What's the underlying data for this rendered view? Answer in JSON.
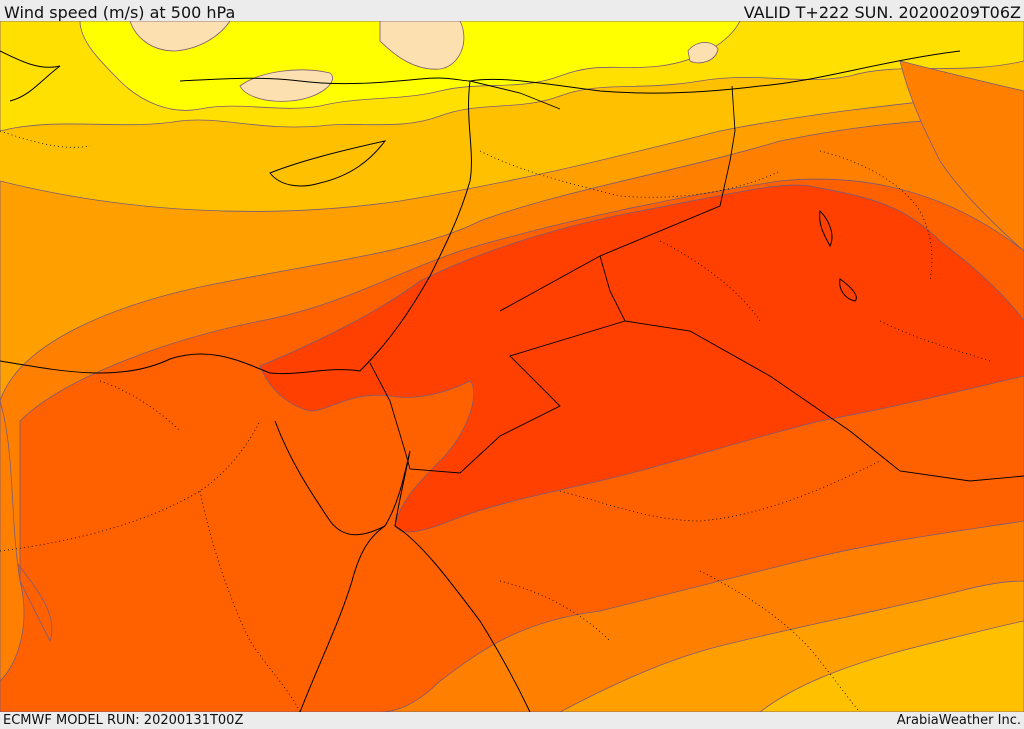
{
  "header": {
    "title": "Wind speed (m/s) at 500 hPa",
    "valid_time": "VALID T+222 SUN. 20200209T06Z"
  },
  "footer": {
    "model_run": "ECMWF MODEL RUN: 20200131T00Z",
    "credit": "ArabiaWeather Inc."
  },
  "colors": {
    "speed_band_1": "#fde0b0",
    "speed_band_2": "#ffff00",
    "speed_band_3": "#ffe000",
    "speed_band_4": "#ffc000",
    "speed_band_5": "#ffa000",
    "speed_band_6": "#ff8000",
    "speed_band_7": "#ff6000",
    "speed_band_8": "#ff4000",
    "contour_line": "#7a5a78",
    "coastline": "#000000"
  }
}
